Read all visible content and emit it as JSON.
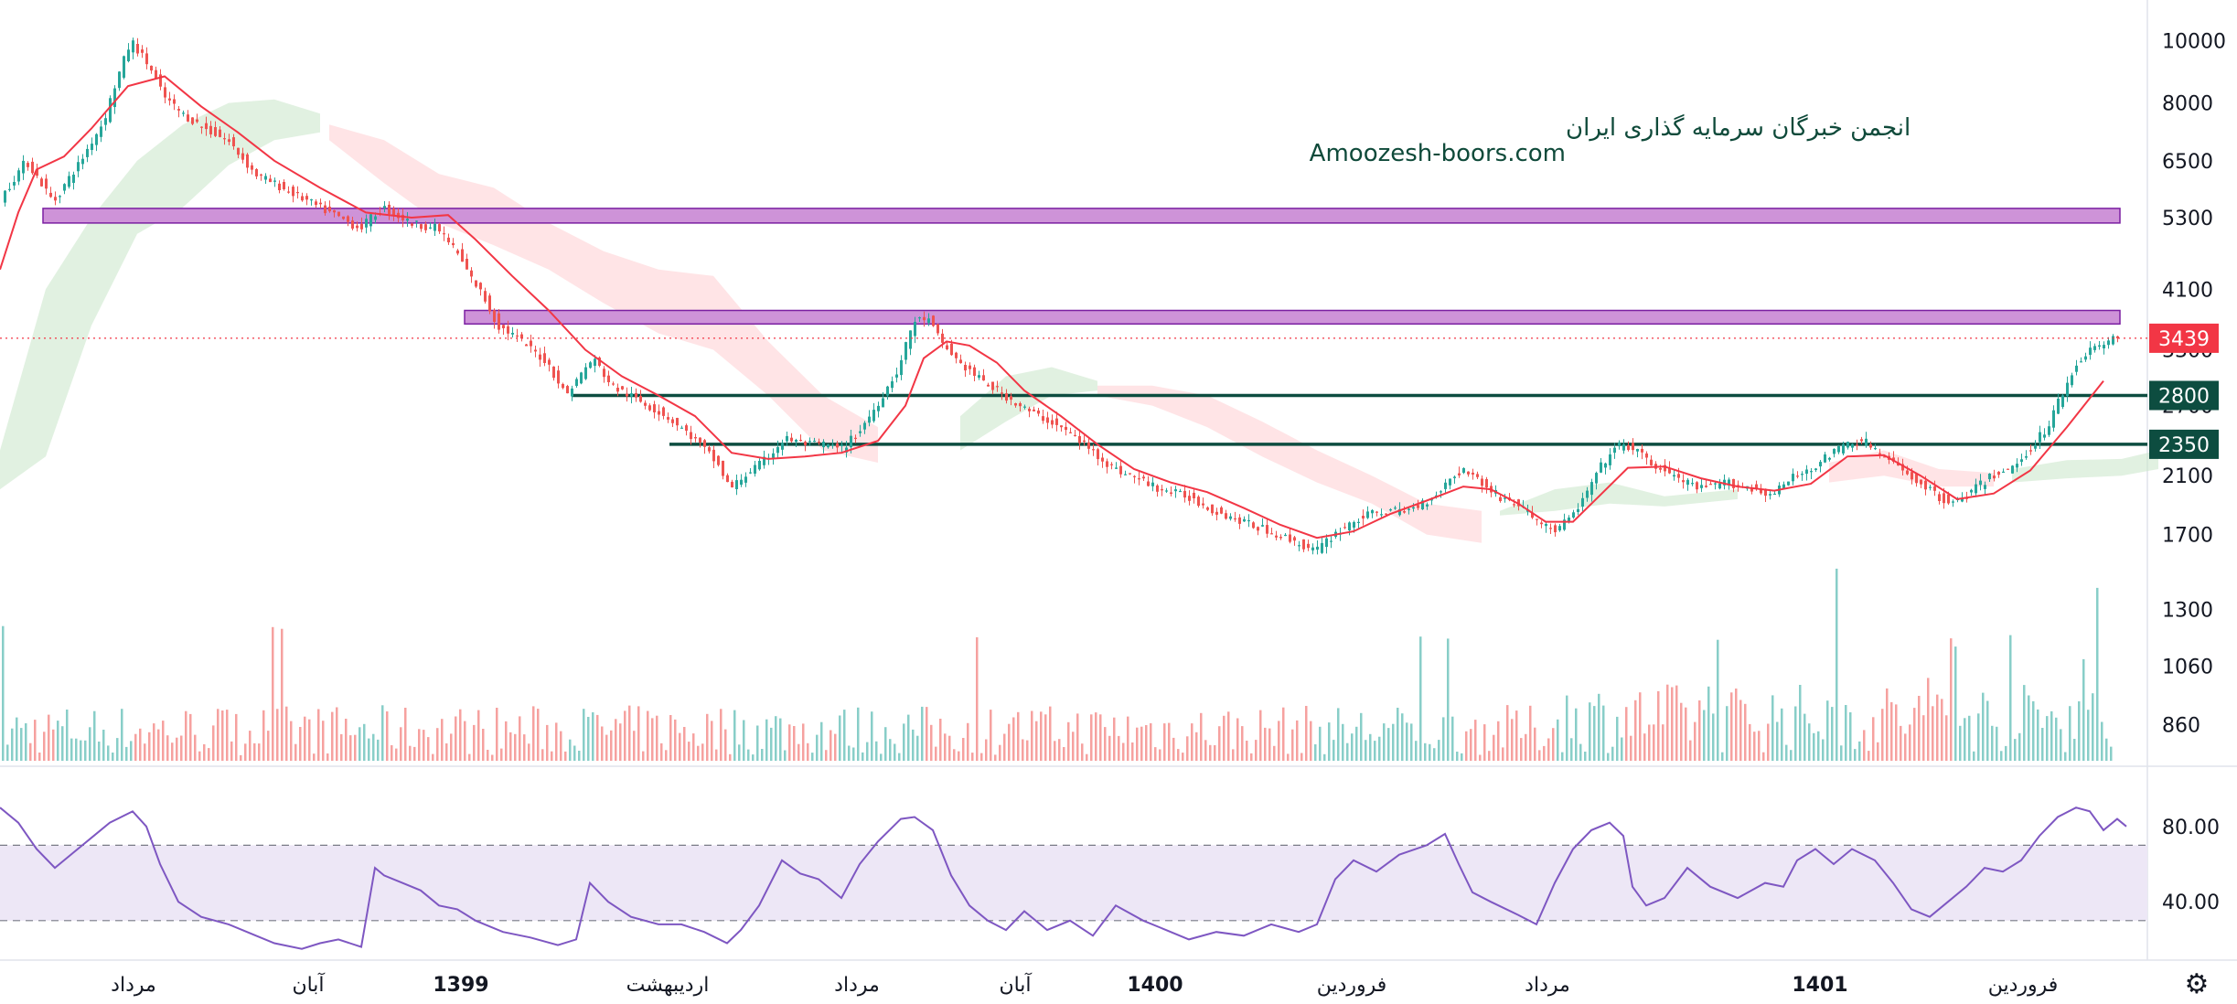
{
  "watermark": {
    "line1": "انجمن خبرگان سرمایه گذاری ایران",
    "line2": "Amoozesh-boors.com"
  },
  "colors": {
    "up": "#26a69a",
    "down": "#ef5350",
    "ma": "#f23645",
    "cloud_green": "#c8e6c9",
    "cloud_red": "#ffcdd2",
    "zone": "#ce93d8",
    "zone_border": "#7b1fa2",
    "support": "#0d4d40",
    "rsi": "#7e57c2",
    "rsi_band": "#ede7f6",
    "last_price": "#f23645"
  },
  "chart_data": {
    "type": "candlestick",
    "price_axis": {
      "scale": "log",
      "ylim": [
        760,
        11200
      ],
      "ticks": [
        "10000",
        "8000",
        "6500",
        "5300",
        "4100",
        "3300",
        "2700",
        "2100",
        "1700",
        "1300",
        "1060",
        "860"
      ]
    },
    "time_axis": {
      "labels": [
        {
          "text": "مرداد",
          "bold": false
        },
        {
          "text": "آبان",
          "bold": false
        },
        {
          "text": "1399",
          "bold": true
        },
        {
          "text": "اردیبهشت",
          "bold": false
        },
        {
          "text": "مرداد",
          "bold": false
        },
        {
          "text": "آبان",
          "bold": false
        },
        {
          "text": "1400",
          "bold": true
        },
        {
          "text": "فروردین",
          "bold": false
        },
        {
          "text": "مرداد",
          "bold": false
        },
        {
          "text": "1401",
          "bold": true
        },
        {
          "text": "فروردین",
          "bold": false
        }
      ]
    },
    "close_path": [
      [
        0,
        5600
      ],
      [
        30,
        6500
      ],
      [
        60,
        5600
      ],
      [
        90,
        6500
      ],
      [
        115,
        7500
      ],
      [
        145,
        10000
      ],
      [
        165,
        9100
      ],
      [
        180,
        8200
      ],
      [
        200,
        7700
      ],
      [
        225,
        7300
      ],
      [
        250,
        7000
      ],
      [
        280,
        6200
      ],
      [
        310,
        5900
      ],
      [
        350,
        5500
      ],
      [
        395,
        5100
      ],
      [
        420,
        5500
      ],
      [
        450,
        5200
      ],
      [
        480,
        5100
      ],
      [
        500,
        4700
      ],
      [
        515,
        4300
      ],
      [
        530,
        4000
      ],
      [
        545,
        3600
      ],
      [
        560,
        3500
      ],
      [
        600,
        3150
      ],
      [
        620,
        2800
      ],
      [
        650,
        3200
      ],
      [
        670,
        2900
      ],
      [
        700,
        2750
      ],
      [
        730,
        2600
      ],
      [
        760,
        2400
      ],
      [
        785,
        2200
      ],
      [
        800,
        2000
      ],
      [
        815,
        2100
      ],
      [
        835,
        2200
      ],
      [
        860,
        2400
      ],
      [
        885,
        2350
      ],
      [
        905,
        2350
      ],
      [
        920,
        2300
      ],
      [
        940,
        2450
      ],
      [
        960,
        2700
      ],
      [
        985,
        3100
      ],
      [
        1000,
        3650
      ],
      [
        1015,
        3700
      ],
      [
        1030,
        3400
      ],
      [
        1050,
        3150
      ],
      [
        1075,
        2950
      ],
      [
        1100,
        2800
      ],
      [
        1125,
        2650
      ],
      [
        1150,
        2550
      ],
      [
        1170,
        2450
      ],
      [
        1195,
        2300
      ],
      [
        1220,
        2150
      ],
      [
        1245,
        2080
      ],
      [
        1270,
        2000
      ],
      [
        1300,
        1950
      ],
      [
        1330,
        1850
      ],
      [
        1360,
        1780
      ],
      [
        1390,
        1720
      ],
      [
        1420,
        1650
      ],
      [
        1440,
        1600
      ],
      [
        1460,
        1700
      ],
      [
        1480,
        1780
      ],
      [
        1510,
        1850
      ],
      [
        1540,
        1850
      ],
      [
        1570,
        1950
      ],
      [
        1590,
        2100
      ],
      [
        1605,
        2150
      ],
      [
        1620,
        2050
      ],
      [
        1640,
        1950
      ],
      [
        1660,
        1900
      ],
      [
        1680,
        1800
      ],
      [
        1700,
        1720
      ],
      [
        1718,
        1800
      ],
      [
        1735,
        1950
      ],
      [
        1750,
        2150
      ],
      [
        1765,
        2300
      ],
      [
        1775,
        2350
      ],
      [
        1790,
        2300
      ],
      [
        1805,
        2200
      ],
      [
        1830,
        2100
      ],
      [
        1860,
        2000
      ],
      [
        1890,
        2050
      ],
      [
        1920,
        2000
      ],
      [
        1940,
        1960
      ],
      [
        1960,
        2080
      ],
      [
        1980,
        2150
      ],
      [
        2000,
        2250
      ],
      [
        2020,
        2350
      ],
      [
        2040,
        2380
      ],
      [
        2060,
        2250
      ],
      [
        2080,
        2150
      ],
      [
        2100,
        2050
      ],
      [
        2120,
        1950
      ],
      [
        2140,
        1900
      ],
      [
        2160,
        2000
      ],
      [
        2180,
        2100
      ],
      [
        2200,
        2150
      ],
      [
        2220,
        2300
      ],
      [
        2240,
        2500
      ],
      [
        2255,
        2800
      ],
      [
        2270,
        3100
      ],
      [
        2285,
        3300
      ],
      [
        2300,
        3350
      ],
      [
        2315,
        3439
      ]
    ],
    "ma_path": [
      [
        0,
        4400
      ],
      [
        20,
        5400
      ],
      [
        40,
        6300
      ],
      [
        70,
        6600
      ],
      [
        100,
        7300
      ],
      [
        140,
        8500
      ],
      [
        180,
        8800
      ],
      [
        220,
        7900
      ],
      [
        260,
        7200
      ],
      [
        300,
        6500
      ],
      [
        350,
        5900
      ],
      [
        400,
        5400
      ],
      [
        450,
        5300
      ],
      [
        490,
        5350
      ],
      [
        520,
        4900
      ],
      [
        560,
        4300
      ],
      [
        600,
        3800
      ],
      [
        640,
        3300
      ],
      [
        680,
        3000
      ],
      [
        720,
        2800
      ],
      [
        760,
        2600
      ],
      [
        800,
        2280
      ],
      [
        840,
        2230
      ],
      [
        880,
        2250
      ],
      [
        920,
        2280
      ],
      [
        960,
        2380
      ],
      [
        990,
        2700
      ],
      [
        1010,
        3200
      ],
      [
        1035,
        3400
      ],
      [
        1060,
        3350
      ],
      [
        1090,
        3150
      ],
      [
        1120,
        2850
      ],
      [
        1160,
        2600
      ],
      [
        1200,
        2350
      ],
      [
        1240,
        2150
      ],
      [
        1280,
        2050
      ],
      [
        1320,
        1980
      ],
      [
        1360,
        1870
      ],
      [
        1400,
        1760
      ],
      [
        1440,
        1680
      ],
      [
        1480,
        1720
      ],
      [
        1520,
        1830
      ],
      [
        1560,
        1920
      ],
      [
        1600,
        2020
      ],
      [
        1630,
        2000
      ],
      [
        1660,
        1900
      ],
      [
        1690,
        1780
      ],
      [
        1720,
        1780
      ],
      [
        1750,
        1960
      ],
      [
        1780,
        2160
      ],
      [
        1820,
        2170
      ],
      [
        1860,
        2080
      ],
      [
        1900,
        2020
      ],
      [
        1940,
        1990
      ],
      [
        1980,
        2040
      ],
      [
        2020,
        2250
      ],
      [
        2060,
        2260
      ],
      [
        2100,
        2100
      ],
      [
        2140,
        1930
      ],
      [
        2180,
        1970
      ],
      [
        2220,
        2140
      ],
      [
        2260,
        2500
      ],
      [
        2300,
        2950
      ]
    ],
    "cloud_green": [
      [
        {
          "x": 0,
          "hi": 2300,
          "lo": 2000
        },
        {
          "x": 50,
          "hi": 4100,
          "lo": 2250
        },
        {
          "x": 100,
          "hi": 5300,
          "lo": 3600
        },
        {
          "x": 150,
          "hi": 6500,
          "lo": 5000
        },
        {
          "x": 200,
          "hi": 7400,
          "lo": 5500
        },
        {
          "x": 250,
          "hi": 8000,
          "lo": 6400
        },
        {
          "x": 300,
          "hi": 8100,
          "lo": 7000
        },
        {
          "x": 350,
          "hi": 7700,
          "lo": 7200
        }
      ],
      [
        {
          "x": 1050,
          "hi": 2600,
          "lo": 2300
        },
        {
          "x": 1100,
          "hi": 3000,
          "lo": 2550
        },
        {
          "x": 1150,
          "hi": 3100,
          "lo": 2800
        },
        {
          "x": 1200,
          "hi": 2950,
          "lo": 2850
        }
      ],
      [
        {
          "x": 1640,
          "hi": 1850,
          "lo": 1820
        },
        {
          "x": 1700,
          "hi": 2000,
          "lo": 1850
        },
        {
          "x": 1760,
          "hi": 2050,
          "lo": 1900
        },
        {
          "x": 1820,
          "hi": 1950,
          "lo": 1880
        },
        {
          "x": 1900,
          "hi": 2000,
          "lo": 1930
        }
      ],
      [
        {
          "x": 2200,
          "hi": 2150,
          "lo": 2050
        },
        {
          "x": 2260,
          "hi": 2220,
          "lo": 2080
        },
        {
          "x": 2320,
          "hi": 2230,
          "lo": 2100
        },
        {
          "x": 2360,
          "hi": 2300,
          "lo": 2150
        }
      ]
    ],
    "cloud_red": [
      [
        {
          "x": 360,
          "hi": 7400,
          "lo": 7000
        },
        {
          "x": 420,
          "hi": 7000,
          "lo": 6000
        },
        {
          "x": 480,
          "hi": 6200,
          "lo": 5200
        },
        {
          "x": 540,
          "hi": 5900,
          "lo": 4800
        },
        {
          "x": 600,
          "hi": 5200,
          "lo": 4400
        },
        {
          "x": 660,
          "hi": 4700,
          "lo": 3900
        },
        {
          "x": 720,
          "hi": 4400,
          "lo": 3500
        },
        {
          "x": 780,
          "hi": 4300,
          "lo": 3300
        },
        {
          "x": 840,
          "hi": 3400,
          "lo": 2800
        },
        {
          "x": 900,
          "hi": 2800,
          "lo": 2300
        },
        {
          "x": 960,
          "hi": 2500,
          "lo": 2200
        }
      ],
      [
        {
          "x": 1200,
          "hi": 2900,
          "lo": 2800
        },
        {
          "x": 1260,
          "hi": 2900,
          "lo": 2700
        },
        {
          "x": 1320,
          "hi": 2800,
          "lo": 2500
        },
        {
          "x": 1380,
          "hi": 2550,
          "lo": 2250
        },
        {
          "x": 1440,
          "hi": 2300,
          "lo": 2050
        },
        {
          "x": 1500,
          "hi": 2100,
          "lo": 1900
        },
        {
          "x": 1560,
          "hi": 1900,
          "lo": 1700
        },
        {
          "x": 1620,
          "hi": 1850,
          "lo": 1650
        }
      ],
      [
        {
          "x": 2000,
          "hi": 2200,
          "lo": 2050
        },
        {
          "x": 2060,
          "hi": 2300,
          "lo": 2100
        },
        {
          "x": 2120,
          "hi": 2150,
          "lo": 2020
        },
        {
          "x": 2180,
          "hi": 2120,
          "lo": 2020
        }
      ]
    ],
    "zones": [
      {
        "x_start": 47,
        "x_end": 2318,
        "low": 5200,
        "high": 5480
      },
      {
        "x_start": 508,
        "x_end": 2318,
        "low": 3620,
        "high": 3800
      }
    ],
    "support_lines": [
      {
        "value": 2800,
        "label": "2800",
        "x_start": 625
      },
      {
        "value": 2350,
        "label": "2350",
        "x_start": 732
      }
    ],
    "last_price": {
      "value": 3439,
      "label": "3439"
    },
    "rsi": {
      "ticks": [
        "80.00",
        "40.00"
      ],
      "ylim": [
        10,
        110
      ],
      "band": [
        30,
        70
      ],
      "path": [
        [
          0,
          90
        ],
        [
          20,
          82
        ],
        [
          40,
          68
        ],
        [
          60,
          58
        ],
        [
          80,
          66
        ],
        [
          100,
          74
        ],
        [
          120,
          82
        ],
        [
          145,
          88
        ],
        [
          160,
          80
        ],
        [
          175,
          60
        ],
        [
          195,
          40
        ],
        [
          220,
          32
        ],
        [
          250,
          28
        ],
        [
          280,
          22
        ],
        [
          300,
          18
        ],
        [
          330,
          15
        ],
        [
          350,
          18
        ],
        [
          370,
          20
        ],
        [
          395,
          16
        ],
        [
          410,
          58
        ],
        [
          420,
          54
        ],
        [
          440,
          50
        ],
        [
          460,
          46
        ],
        [
          480,
          38
        ],
        [
          500,
          36
        ],
        [
          520,
          30
        ],
        [
          550,
          24
        ],
        [
          580,
          21
        ],
        [
          610,
          17
        ],
        [
          630,
          20
        ],
        [
          645,
          50
        ],
        [
          665,
          40
        ],
        [
          690,
          32
        ],
        [
          720,
          28
        ],
        [
          745,
          28
        ],
        [
          770,
          24
        ],
        [
          795,
          18
        ],
        [
          810,
          25
        ],
        [
          830,
          38
        ],
        [
          855,
          62
        ],
        [
          875,
          55
        ],
        [
          895,
          52
        ],
        [
          920,
          42
        ],
        [
          940,
          60
        ],
        [
          960,
          72
        ],
        [
          985,
          84
        ],
        [
          1000,
          85
        ],
        [
          1020,
          78
        ],
        [
          1040,
          54
        ],
        [
          1060,
          38
        ],
        [
          1080,
          30
        ],
        [
          1100,
          25
        ],
        [
          1120,
          35
        ],
        [
          1145,
          25
        ],
        [
          1170,
          30
        ],
        [
          1195,
          22
        ],
        [
          1220,
          38
        ],
        [
          1250,
          30
        ],
        [
          1270,
          26
        ],
        [
          1300,
          20
        ],
        [
          1330,
          24
        ],
        [
          1360,
          22
        ],
        [
          1390,
          28
        ],
        [
          1420,
          24
        ],
        [
          1440,
          28
        ],
        [
          1460,
          52
        ],
        [
          1480,
          62
        ],
        [
          1505,
          56
        ],
        [
          1530,
          65
        ],
        [
          1560,
          70
        ],
        [
          1580,
          76
        ],
        [
          1595,
          60
        ],
        [
          1610,
          45
        ],
        [
          1630,
          40
        ],
        [
          1660,
          33
        ],
        [
          1680,
          28
        ],
        [
          1700,
          50
        ],
        [
          1720,
          68
        ],
        [
          1740,
          78
        ],
        [
          1760,
          82
        ],
        [
          1775,
          75
        ],
        [
          1785,
          48
        ],
        [
          1800,
          38
        ],
        [
          1820,
          42
        ],
        [
          1845,
          58
        ],
        [
          1870,
          48
        ],
        [
          1900,
          42
        ],
        [
          1930,
          50
        ],
        [
          1950,
          48
        ],
        [
          1965,
          62
        ],
        [
          1985,
          68
        ],
        [
          2005,
          60
        ],
        [
          2025,
          68
        ],
        [
          2050,
          62
        ],
        [
          2070,
          50
        ],
        [
          2090,
          36
        ],
        [
          2110,
          32
        ],
        [
          2130,
          40
        ],
        [
          2150,
          48
        ],
        [
          2170,
          58
        ],
        [
          2190,
          56
        ],
        [
          2210,
          62
        ],
        [
          2230,
          75
        ],
        [
          2250,
          85
        ],
        [
          2270,
          90
        ],
        [
          2285,
          88
        ],
        [
          2300,
          78
        ],
        [
          2315,
          84
        ],
        [
          2325,
          80
        ]
      ]
    }
  }
}
